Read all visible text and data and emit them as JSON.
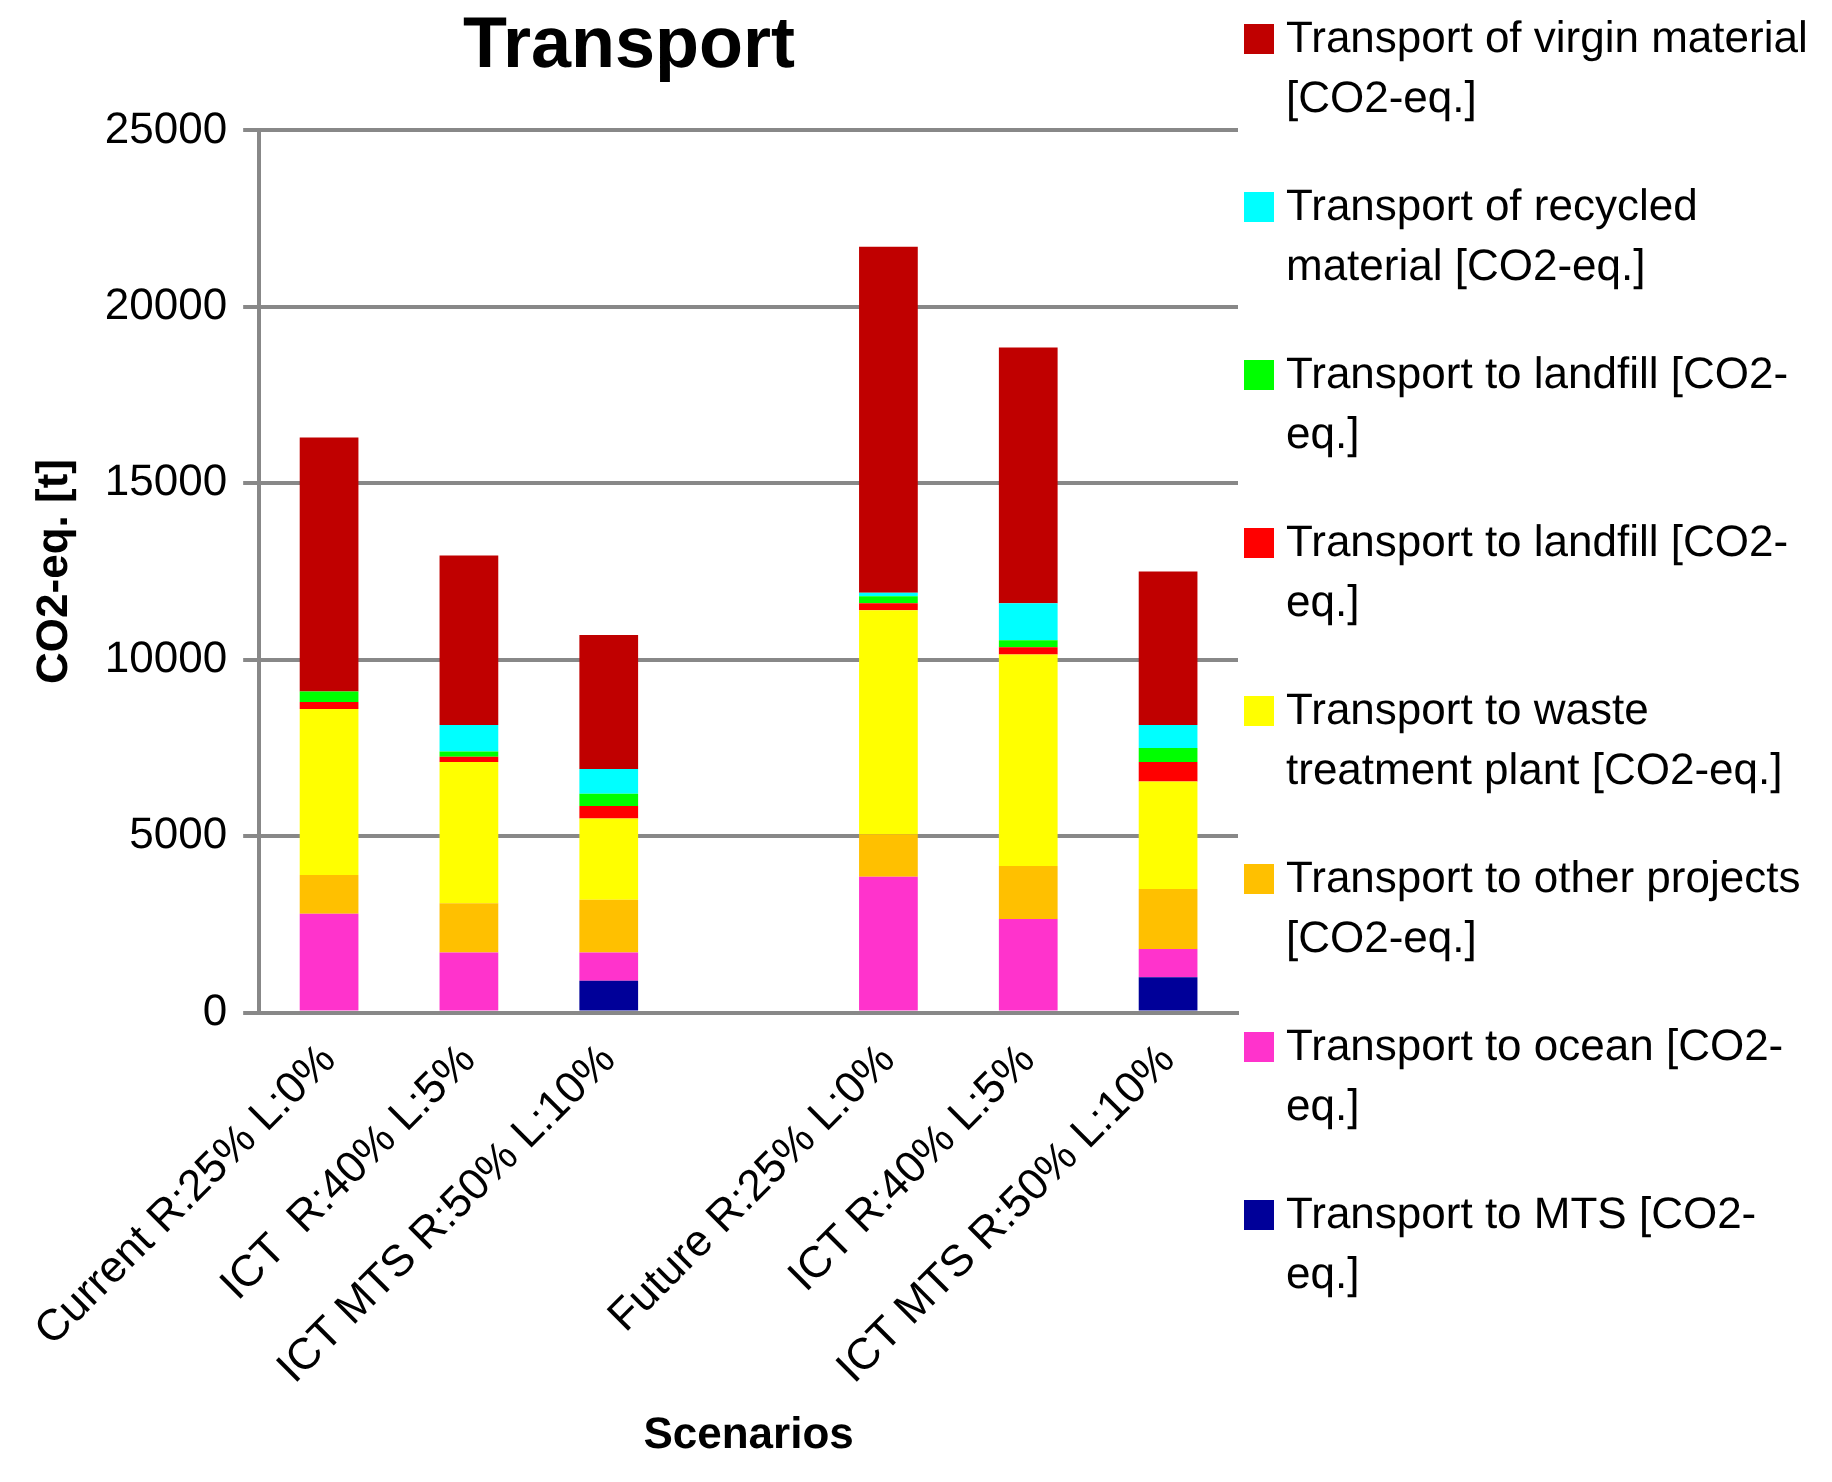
{
  "chart_data": {
    "type": "bar",
    "title": "Transport",
    "xlabel": "Scenarios",
    "ylabel": "CO2-eq. [t]",
    "categories": [
      "Current R:25% L:0%",
      "ICT  R:40% L:5%",
      "ICT MTS R:50% L:10%",
      null,
      "Future R:25% L:0%",
      "ICT R:40% L:5%",
      "ICT MTS R:50% L:10%"
    ],
    "stacked": true,
    "ylim": [
      0,
      25000
    ],
    "yticks": [
      0,
      5000,
      10000,
      15000,
      20000,
      25000
    ],
    "grid": "y",
    "legend": "right",
    "series": [
      {
        "name": "Transport to MTS [CO2-eq.]",
        "color": "#000099",
        "values": [
          0,
          0,
          900,
          null,
          0,
          0,
          1000
        ]
      },
      {
        "name": "Transport to ocean [CO2-eq.]",
        "color": "#ff33cc",
        "values": [
          2800,
          1700,
          800,
          null,
          3850,
          2650,
          800
        ]
      },
      {
        "name": "Transport to other projects [CO2-eq.]",
        "color": "#ffc000",
        "values": [
          1100,
          1400,
          1500,
          null,
          1200,
          1500,
          1700
        ]
      },
      {
        "name": "Transport to waste treatment plant [CO2-eq.]",
        "color": "#ffff00",
        "values": [
          4700,
          4000,
          2300,
          null,
          6350,
          6000,
          3050
        ]
      },
      {
        "name": "Transport to landfill [CO2-eq.]",
        "color": "#ff0000",
        "values": [
          200,
          150,
          350,
          null,
          200,
          200,
          550
        ]
      },
      {
        "name": "Transport to landfill [CO2-eq.]",
        "color": "#00ff00",
        "values": [
          300,
          150,
          350,
          null,
          200,
          200,
          400
        ]
      },
      {
        "name": "Transport of recycled material [CO2-eq.]",
        "color": "#00ffff",
        "values": [
          0,
          750,
          700,
          null,
          100,
          1050,
          650
        ]
      },
      {
        "name": "Transport of virgin material [CO2-eq.]",
        "color": "#c00000",
        "values": [
          7200,
          4800,
          3800,
          null,
          9800,
          7250,
          4350
        ]
      }
    ]
  }
}
